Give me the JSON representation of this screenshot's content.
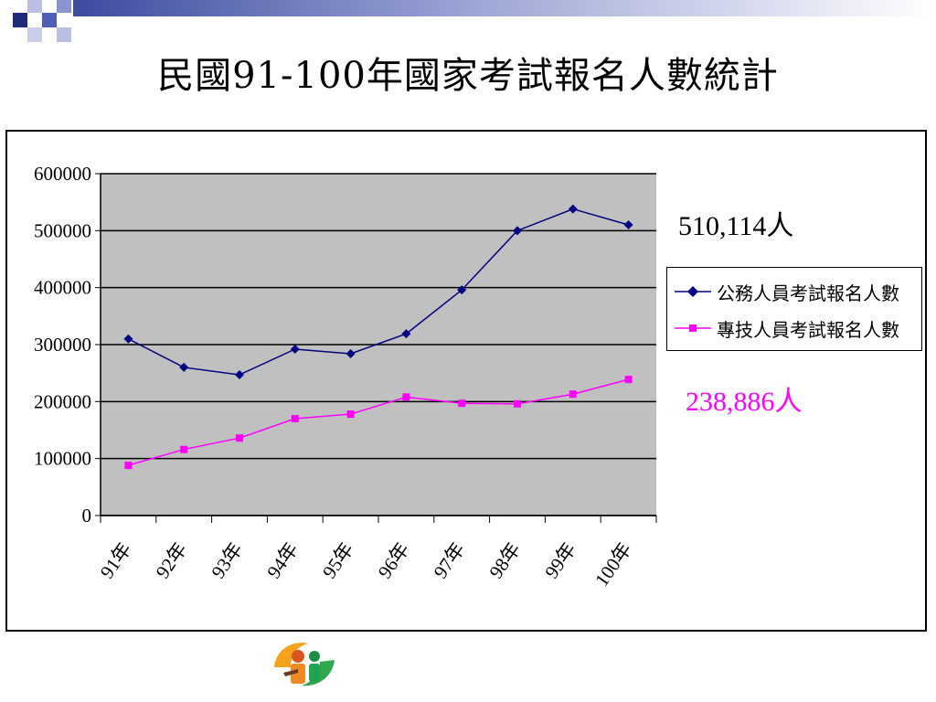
{
  "slide": {
    "title": "民國91-100年國家考試報名人數統計"
  },
  "callouts": {
    "gov_total": "510,114人",
    "tech_total": "238,886人"
  },
  "legend": {
    "items": [
      {
        "label": "公務人員考試報名人數"
      },
      {
        "label": "專技人員考試報名人數"
      }
    ],
    "placement": "right"
  },
  "colors": {
    "gov_series": "#000080",
    "tech_series": "#FF00FF",
    "plot_background": "#C0C0C0",
    "deco_navy": "#1F2A78",
    "deco_blue": "#4F5FB5",
    "deco_light": "#B9C0E3"
  },
  "chart_data": {
    "type": "line",
    "categories": [
      "91年",
      "92年",
      "93年",
      "94年",
      "95年",
      "96年",
      "97年",
      "98年",
      "99年",
      "100年"
    ],
    "series": [
      {
        "name": "公務人員考試報名人數",
        "values": [
          310000,
          260000,
          247000,
          292000,
          284000,
          319000,
          396000,
          500000,
          538000,
          510114
        ],
        "marker": "diamond",
        "color": "#000080"
      },
      {
        "name": "專技人員考試報名人數",
        "values": [
          88000,
          116000,
          136000,
          170000,
          178000,
          208000,
          197000,
          196000,
          213000,
          238886
        ],
        "marker": "square",
        "color": "#FF00FF"
      }
    ],
    "yticks": [
      "0",
      "100000",
      "200000",
      "300000",
      "400000",
      "500000",
      "600000"
    ],
    "ylim": [
      0,
      600000
    ],
    "grid": "horizontal",
    "legend_placement": "right"
  }
}
